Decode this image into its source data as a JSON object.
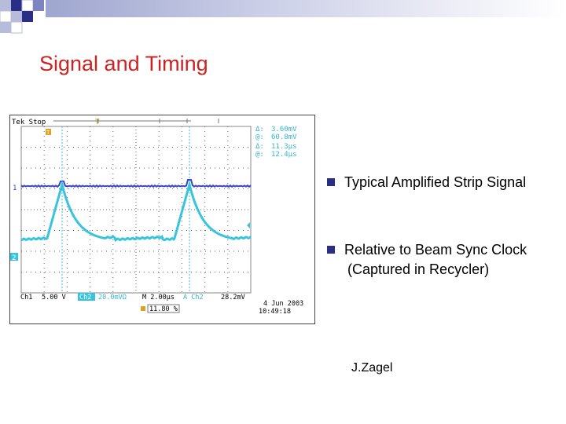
{
  "slide": {
    "title": "Signal and Timing",
    "author": "J.Zagel"
  },
  "bullets": [
    {
      "text": "Typical Amplified Strip Signal"
    },
    {
      "line1": "Relative to Beam Sync Clock",
      "line2": "(Captured in Recycler)"
    }
  ],
  "scope": {
    "header": "Tek Stop",
    "trigger_marker": "T",
    "ch1_marker": "1",
    "ch2_marker": "2",
    "cursor_readouts": [
      {
        "label": "Δ:",
        "value": "3.60mV"
      },
      {
        "label": "@:",
        "value": "60.8mV"
      },
      {
        "label": "Δ:",
        "value": "11.3μs"
      },
      {
        "label": "@:",
        "value": "12.4μs"
      }
    ],
    "ch1_label": "Ch1",
    "ch1_scale": "5.00 V",
    "ch2_label": "Ch2",
    "ch2_scale": "20.0mVΩ",
    "timebase": "M 2.00μs",
    "trigger_source": "A Ch2",
    "trigger_level": "28.2mV",
    "trigger_position": "11.80 %",
    "date": "4 Jun 2003",
    "time": "10:49:18",
    "colors": {
      "ch1": "#3b46c8",
      "ch2": "#37c4dc",
      "readout": "#34b6cf",
      "trace_bg": "#ffffff"
    }
  }
}
